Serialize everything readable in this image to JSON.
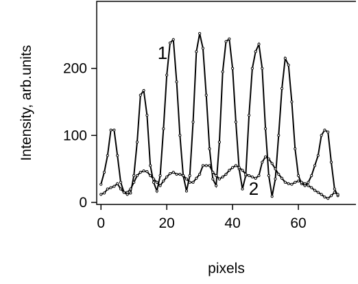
{
  "chart_data": {
    "type": "line",
    "ylabel": "Intensity, arb.units",
    "xlabel": "pixels",
    "annotations": [
      "1",
      "2"
    ],
    "x": [
      0,
      1,
      2,
      3,
      4,
      5,
      6,
      7,
      8,
      9,
      10,
      11,
      12,
      13,
      14,
      15,
      16,
      17,
      18,
      19,
      20,
      21,
      22,
      23,
      24,
      25,
      26,
      27,
      28,
      29,
      30,
      31,
      32,
      33,
      34,
      35,
      36,
      37,
      38,
      39,
      40,
      41,
      42,
      43,
      44,
      45,
      46,
      47,
      48,
      49,
      50,
      51,
      52,
      53,
      54,
      55,
      56,
      57,
      58,
      59,
      60,
      61,
      62,
      63,
      64,
      65,
      66,
      67,
      68,
      69,
      70,
      71,
      72
    ],
    "series": [
      {
        "name": "1",
        "color": "#000000",
        "values": [
          27,
          45,
          70,
          108,
          108,
          70,
          30,
          15,
          12,
          14,
          40,
          90,
          160,
          167,
          130,
          55,
          30,
          17,
          40,
          110,
          190,
          238,
          243,
          180,
          100,
          40,
          17,
          40,
          120,
          225,
          252,
          230,
          160,
          80,
          35,
          25,
          90,
          195,
          240,
          244,
          200,
          120,
          50,
          20,
          40,
          130,
          200,
          225,
          236,
          200,
          110,
          40,
          9,
          35,
          100,
          170,
          215,
          205,
          150,
          80,
          40,
          28,
          25,
          30,
          40,
          55,
          70,
          100,
          108,
          105,
          60,
          20,
          10
        ]
      },
      {
        "name": "2",
        "color": "#000000",
        "values": [
          12,
          14,
          20,
          22,
          24,
          28,
          20,
          15,
          15,
          20,
          30,
          40,
          45,
          47,
          46,
          40,
          35,
          30,
          25,
          32,
          38,
          43,
          45,
          42,
          42,
          40,
          35,
          30,
          30,
          36,
          42,
          55,
          55,
          55,
          45,
          40,
          35,
          38,
          42,
          48,
          52,
          55,
          52,
          48,
          42,
          40,
          38,
          36,
          40,
          60,
          68,
          65,
          58,
          50,
          42,
          36,
          30,
          28,
          27,
          30,
          32,
          30,
          28,
          25,
          22,
          18,
          15,
          12,
          8,
          6,
          10,
          15,
          12
        ]
      }
    ],
    "xlim": [
      -1.3,
      77.5
    ],
    "xticks": [
      0,
      20,
      40,
      60
    ],
    "ylim": [
      -3,
      300
    ],
    "yticks": [
      0,
      100,
      200
    ]
  }
}
